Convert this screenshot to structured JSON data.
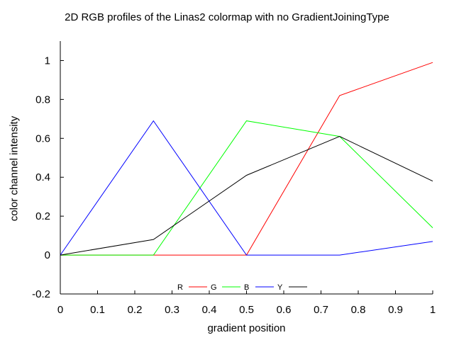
{
  "chart_data": {
    "type": "line",
    "title": "2D RGB profiles of the Linas2 colormap with no GradientJoiningType",
    "xlabel": "gradient position",
    "ylabel": "color channel intensity",
    "xlim": [
      0,
      1
    ],
    "ylim": [
      -0.2,
      1.1
    ],
    "xticks": [
      0,
      0.1,
      0.2,
      0.3,
      0.4,
      0.5,
      0.6,
      0.7,
      0.8,
      0.9,
      1
    ],
    "xtick_labels": [
      "0",
      "0.1",
      "0.2",
      "0.3",
      "0.4",
      "0.5",
      "0.6",
      "0.7",
      "0.8",
      "0.9",
      "1"
    ],
    "yticks": [
      -0.2,
      0,
      0.2,
      0.4,
      0.6,
      0.8,
      1
    ],
    "ytick_labels": [
      "-0.2",
      "0",
      "0.2",
      "0.4",
      "0.6",
      "0.8",
      "1"
    ],
    "grid": false,
    "legend_placement": "bottom-center",
    "series": [
      {
        "name": "R",
        "color": "#ff0000",
        "x": [
          0,
          0.25,
          0.5,
          0.75,
          1
        ],
        "y": [
          0,
          0,
          0,
          0.82,
          0.99
        ]
      },
      {
        "name": "G",
        "color": "#00ff00",
        "x": [
          0,
          0.25,
          0.5,
          0.75,
          1
        ],
        "y": [
          0,
          0,
          0.69,
          0.61,
          0.14
        ]
      },
      {
        "name": "B",
        "color": "#0000ff",
        "x": [
          0,
          0.25,
          0.5,
          0.75,
          1
        ],
        "y": [
          0,
          0.69,
          0,
          0,
          0.07
        ]
      },
      {
        "name": "Y",
        "color": "#000000",
        "x": [
          0,
          0.25,
          0.5,
          0.75,
          1
        ],
        "y": [
          0,
          0.08,
          0.41,
          0.61,
          0.38
        ]
      }
    ]
  }
}
